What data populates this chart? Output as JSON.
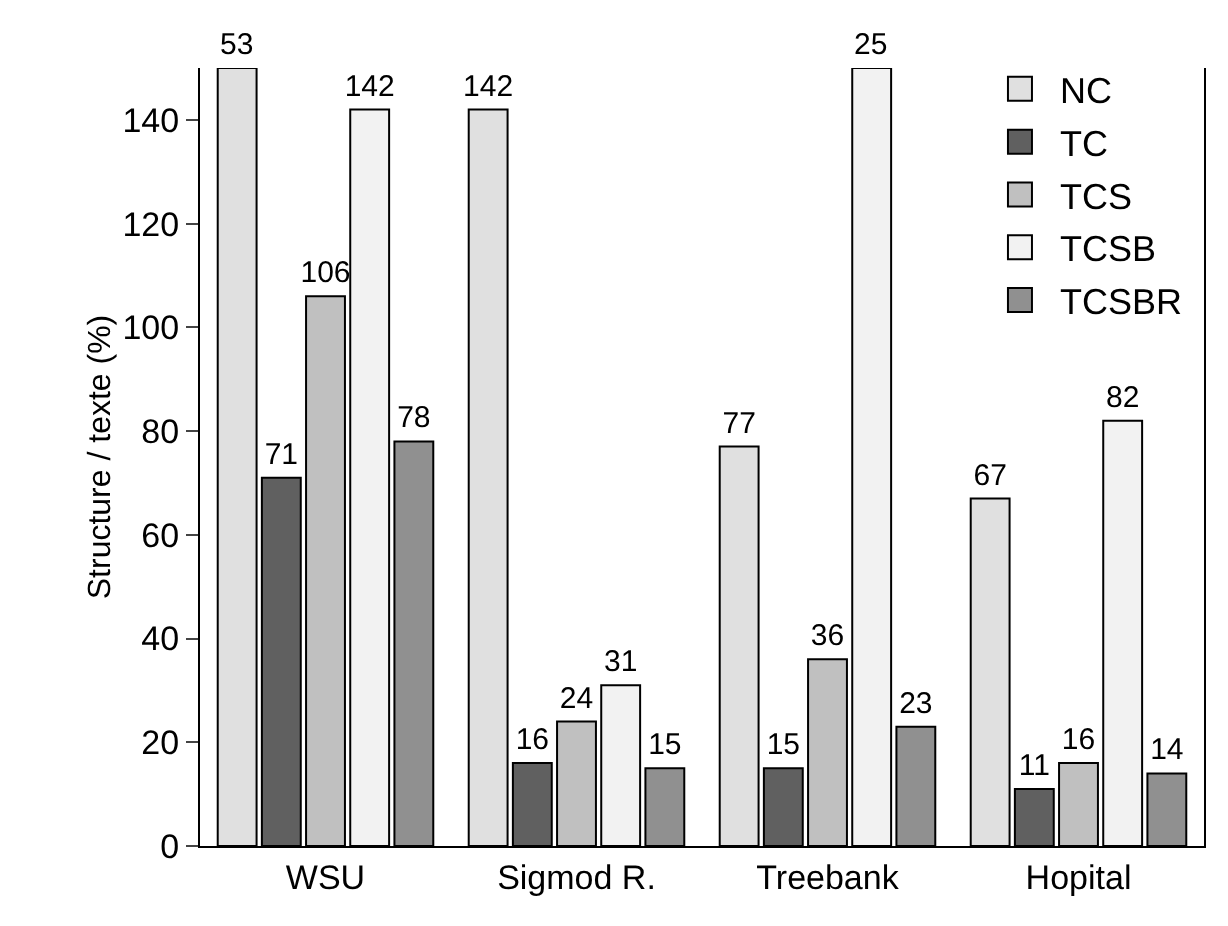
{
  "chart_data": {
    "type": "bar",
    "ylabel": "Structure / texte (%)",
    "categories": [
      "WSU",
      "Sigmod R.",
      "Treebank",
      "Hopital"
    ],
    "series": [
      {
        "name": "NC",
        "color": "#e0e0e0",
        "values": [
          150,
          142,
          77,
          67
        ],
        "value_labels": [
          null,
          "142",
          "77",
          "67"
        ]
      },
      {
        "name": "TC",
        "color": "#606060",
        "values": [
          71,
          16,
          15,
          11
        ],
        "value_labels": [
          "71",
          "16",
          "15",
          "11"
        ]
      },
      {
        "name": "TCS",
        "color": "#c0c0c0",
        "values": [
          106,
          24,
          36,
          16
        ],
        "value_labels": [
          "106",
          "24",
          "36",
          "16"
        ]
      },
      {
        "name": "TCSB",
        "color": "#f2f2f2",
        "values": [
          142,
          31,
          150,
          82
        ],
        "value_labels": [
          "142",
          "31",
          null,
          "82"
        ]
      },
      {
        "name": "TCSBR",
        "color": "#909090",
        "values": [
          78,
          15,
          23,
          14
        ],
        "value_labels": [
          "78",
          "15",
          "23",
          "14"
        ]
      }
    ],
    "annotations": [
      "53",
      "25"
    ],
    "ylim": [
      0,
      150
    ],
    "yticks": [
      0,
      20,
      40,
      60,
      80,
      100,
      120,
      140
    ],
    "grid": false,
    "legend": "top right"
  }
}
